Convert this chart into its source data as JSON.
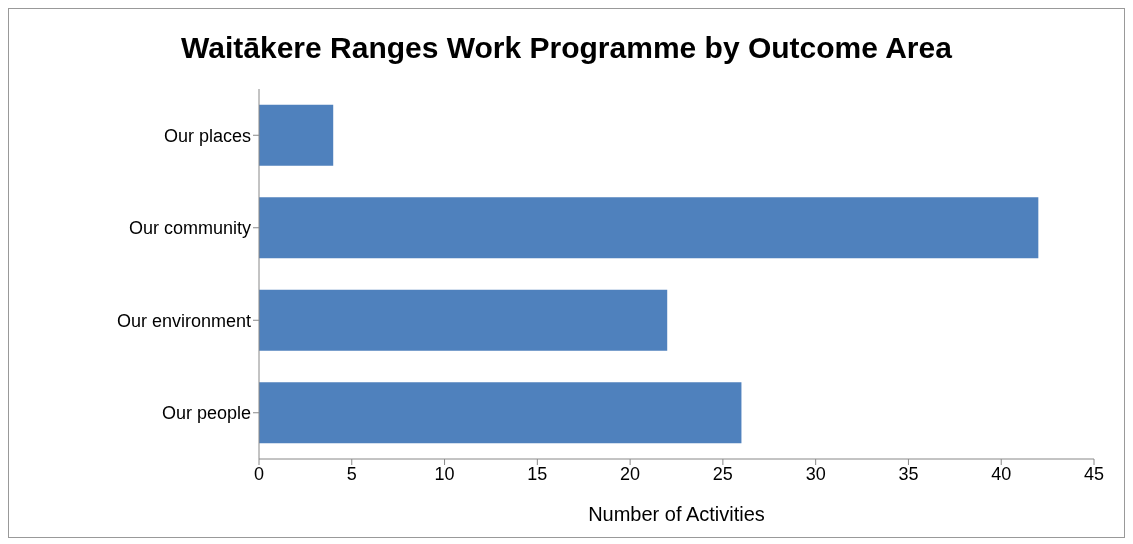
{
  "chart_data": {
    "type": "bar",
    "orientation": "horizontal",
    "title": "Waitākere Ranges Work Programme by Outcome Area",
    "xlabel": "Number of Activities",
    "categories": [
      "Our places",
      "Our community",
      "Our environment",
      "Our people"
    ],
    "values": [
      4,
      42,
      22,
      26
    ],
    "color": "#4f81bd",
    "xlim": [
      0,
      45
    ],
    "xticks": [
      0,
      5,
      10,
      15,
      20,
      25,
      30,
      35,
      40,
      45
    ]
  }
}
